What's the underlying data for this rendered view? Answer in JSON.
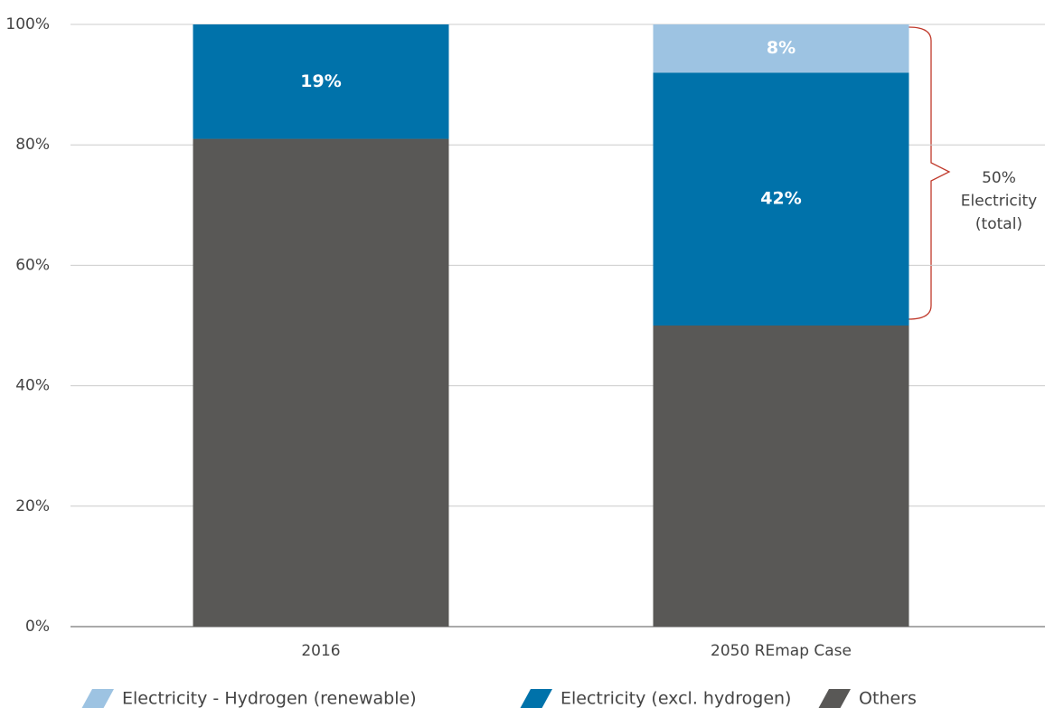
{
  "chart_data": {
    "type": "stacked_bar",
    "categories": [
      "2016",
      "2050 REmap Case"
    ],
    "series": [
      {
        "name": "Electricity - Hydrogen (renewable)",
        "color": "#9dc3e2",
        "values": [
          null,
          8
        ],
        "value_labels": [
          null,
          "8%"
        ]
      },
      {
        "name": "Electricity (excl. hydrogen)",
        "color": "#0072aa",
        "values": [
          19,
          42
        ],
        "value_labels": [
          "19%",
          "42%"
        ]
      },
      {
        "name": "Others",
        "color": "#595856",
        "values": [
          81,
          50
        ]
      }
    ],
    "ylim": [
      0,
      100
    ],
    "yticks": [
      {
        "value": 0,
        "label": "0%"
      },
      {
        "value": 20,
        "label": "20%"
      },
      {
        "value": 40,
        "label": "40%"
      },
      {
        "value": 60,
        "label": "60%"
      },
      {
        "value": 80,
        "label": "80%"
      },
      {
        "value": 100,
        "label": "100%"
      }
    ],
    "grid": true,
    "legend": "bottom",
    "annotation": [
      "50%",
      "Electricity",
      "(total)"
    ]
  }
}
